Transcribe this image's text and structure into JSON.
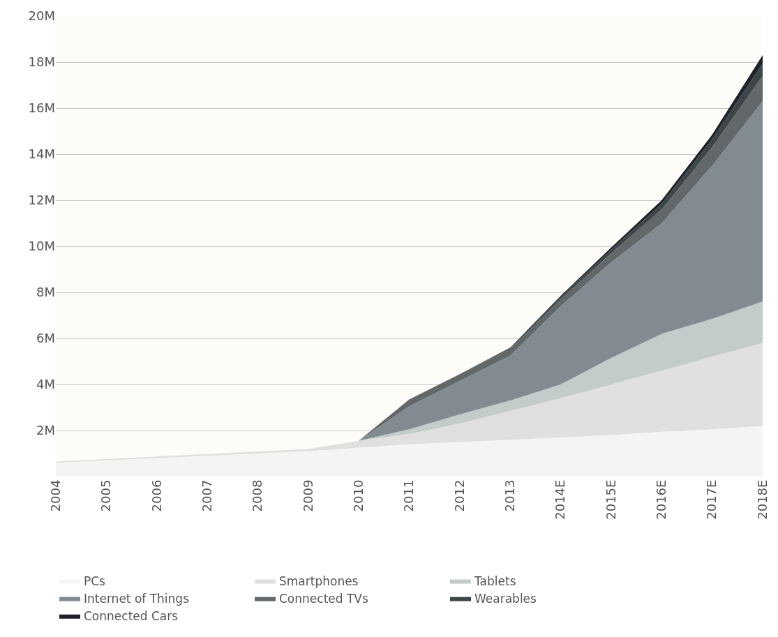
{
  "chart_data": {
    "type": "area",
    "stacked": true,
    "categories": [
      "2004",
      "2005",
      "2006",
      "2007",
      "2008",
      "2009",
      "2010",
      "2011",
      "2012",
      "2013",
      "2014E",
      "2015E",
      "2016E",
      "2017E",
      "2018E"
    ],
    "series": [
      {
        "name": "PCs",
        "color": "#f5f4f5",
        "values": [
          0.6,
          0.7,
          0.8,
          0.9,
          1.0,
          1.1,
          1.25,
          1.4,
          1.5,
          1.6,
          1.7,
          1.8,
          1.95,
          2.05,
          2.2
        ]
      },
      {
        "name": "Smartphones",
        "color": "#e0e0e0",
        "values": [
          0.05,
          0.06,
          0.07,
          0.08,
          0.09,
          0.1,
          0.3,
          0.45,
          0.8,
          1.25,
          1.7,
          2.2,
          2.65,
          3.15,
          3.6
        ]
      },
      {
        "name": "Tablets",
        "color": "#c3cbcb",
        "values": [
          0,
          0,
          0,
          0,
          0,
          0,
          0,
          0.2,
          0.4,
          0.45,
          0.6,
          1.15,
          1.6,
          1.65,
          1.8
        ]
      },
      {
        "name": "Internet of Things",
        "color": "#838b92",
        "values": [
          0,
          0,
          0,
          0,
          0,
          0,
          0,
          1.0,
          1.45,
          1.95,
          3.4,
          4.15,
          4.8,
          6.65,
          8.7
        ]
      },
      {
        "name": "Connected TVs",
        "color": "#62676a",
        "values": [
          0,
          0,
          0,
          0,
          0,
          0,
          0,
          0.3,
          0.3,
          0.3,
          0.3,
          0.4,
          0.6,
          0.8,
          1.1
        ]
      },
      {
        "name": "Wearables",
        "color": "#3e4548",
        "values": [
          0,
          0,
          0,
          0,
          0,
          0,
          0,
          0,
          0,
          0.05,
          0.1,
          0.15,
          0.25,
          0.35,
          0.55
        ]
      },
      {
        "name": "Connected Cars",
        "color": "#1d2328",
        "values": [
          0,
          0,
          0,
          0,
          0,
          0,
          0,
          0,
          0,
          0,
          0.05,
          0.1,
          0.15,
          0.2,
          0.35
        ]
      }
    ],
    "ylim": [
      0,
      20
    ],
    "yticks": [
      {
        "value": 2,
        "label": "2M"
      },
      {
        "value": 4,
        "label": "4M"
      },
      {
        "value": 6,
        "label": "6M"
      },
      {
        "value": 8,
        "label": "8M"
      },
      {
        "value": 10,
        "label": "10M"
      },
      {
        "value": 12,
        "label": "12M"
      },
      {
        "value": 14,
        "label": "14M"
      },
      {
        "value": 16,
        "label": "16M"
      },
      {
        "value": 18,
        "label": "18M"
      },
      {
        "value": 20,
        "label": "20M"
      }
    ],
    "grid": "y",
    "legend": "bottom"
  }
}
